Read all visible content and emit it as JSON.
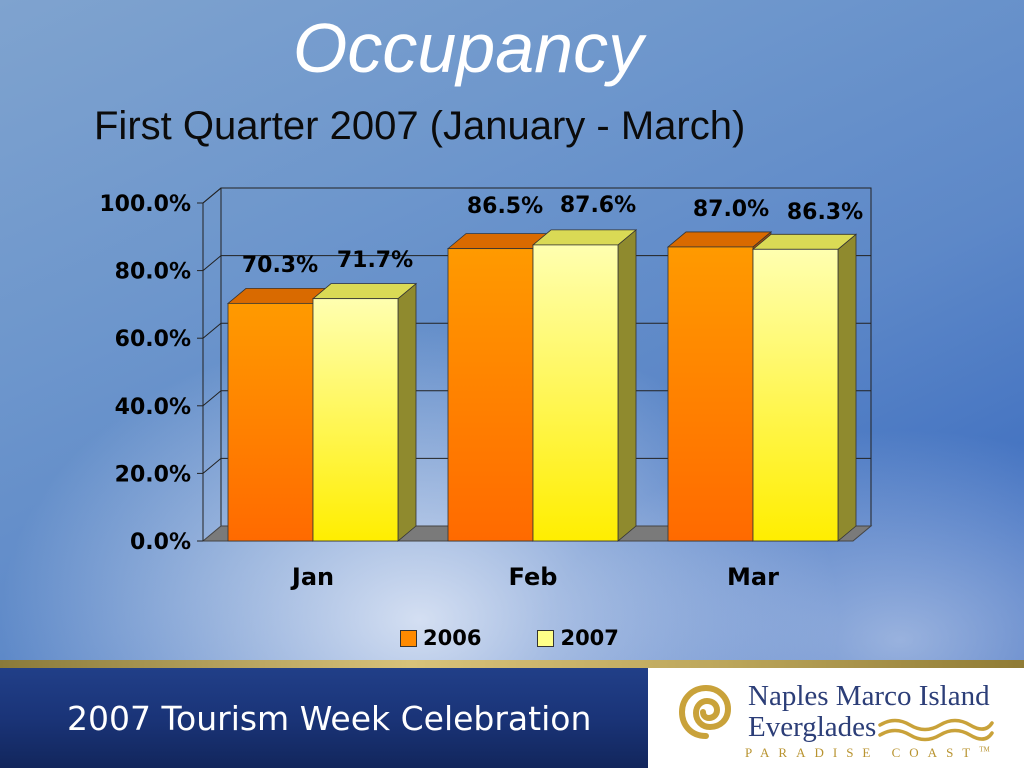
{
  "chart_data": {
    "type": "bar",
    "title": "Occupancy",
    "subtitle": "First Quarter 2007 (January - March)",
    "categories": [
      "Jan",
      "Feb",
      "Mar"
    ],
    "series": [
      {
        "name": "2006",
        "values": [
          70.3,
          86.5,
          87.0
        ],
        "labels": [
          "70.3%",
          "86.5%",
          "87.0%"
        ],
        "color": "#ff8a00"
      },
      {
        "name": "2007",
        "values": [
          71.7,
          87.6,
          86.3
        ],
        "labels": [
          "71.7%",
          "87.6%",
          "86.3%"
        ],
        "color": "#ffff88"
      }
    ],
    "y_ticks": [
      "0.0%",
      "20.0%",
      "40.0%",
      "60.0%",
      "80.0%",
      "100.0%"
    ],
    "ylim": [
      0,
      100
    ],
    "grid": true,
    "legend": "bottom",
    "three_d": true
  },
  "footer": {
    "text": "2007 Tourism Week Celebration"
  },
  "logo": {
    "line1": "Naples Marco Island",
    "line2": "Everglades",
    "tagline": "PARADISE COAST",
    "tm": "TM"
  }
}
